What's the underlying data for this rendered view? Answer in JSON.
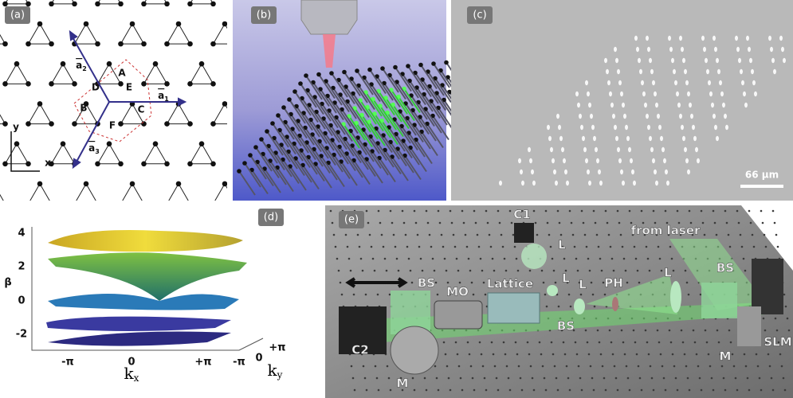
{
  "panels": {
    "a": {
      "label": "(a)",
      "sites": [
        "A",
        "B",
        "C",
        "D",
        "E",
        "F"
      ],
      "vectors": [
        {
          "name": "a",
          "index": "1"
        },
        {
          "name": "a",
          "index": "2"
        },
        {
          "name": "a",
          "index": "3"
        }
      ],
      "axes": [
        "x",
        "y"
      ]
    },
    "b": {
      "label": "(b)"
    },
    "c": {
      "label": "(c)",
      "scale_bar": "66 μm"
    },
    "d": {
      "label": "(d)",
      "y_label": "β",
      "y_ticks": [
        "4",
        "2",
        "0",
        "-2"
      ],
      "kx_ticks": [
        "-π",
        "0",
        "+π"
      ],
      "kx_label": {
        "name": "k",
        "index": "x"
      },
      "ky_ticks": [
        "-π",
        "0",
        "+π"
      ],
      "ky_label": {
        "name": "k",
        "index": "y"
      }
    },
    "e": {
      "label": "(e)",
      "parts": [
        "C1",
        "L",
        "L",
        "L",
        "BS",
        "MO",
        "Lattice",
        "PH",
        "L",
        "BS",
        "from laser",
        "BS",
        "SLM",
        "M",
        "M",
        "C2"
      ]
    }
  }
}
